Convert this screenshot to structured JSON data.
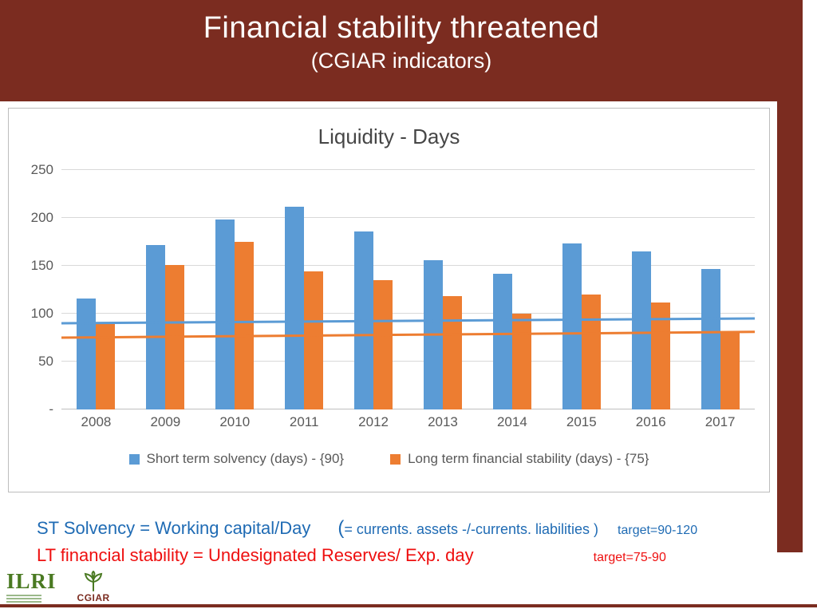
{
  "slide": {
    "title": "Financial stability threatened",
    "subtitle": "(CGIAR indicators)"
  },
  "colors": {
    "banner": "#7b2c20",
    "bar_blue": "#5b9bd5",
    "bar_orange": "#ed7d31",
    "note_blue": "#1f6bb4",
    "note_red": "#ee0f0f"
  },
  "chart_data": {
    "type": "bar",
    "title": "Liquidity - Days",
    "categories": [
      "2008",
      "2009",
      "2010",
      "2011",
      "2012",
      "2013",
      "2014",
      "2015",
      "2016",
      "2017"
    ],
    "series": [
      {
        "name": "Short term solvency (days) - {90}",
        "color": "#5b9bd5",
        "values": [
          116,
          172,
          198,
          212,
          186,
          156,
          142,
          173,
          165,
          147
        ]
      },
      {
        "name": "Long term financial stability (days) - {75}",
        "color": "#ed7d31",
        "values": [
          89,
          151,
          175,
          144,
          135,
          118,
          100,
          120,
          112,
          81
        ]
      }
    ],
    "target_lines": [
      {
        "name": "short-term-target-line",
        "color": "#5b9bd5",
        "start": 90,
        "end": 95
      },
      {
        "name": "long-term-target-line",
        "color": "#ed7d31",
        "start": 75,
        "end": 81
      }
    ],
    "ylim": [
      0,
      250
    ],
    "ytick_step": 50,
    "ytick_labels": [
      "-",
      "50",
      "100",
      "150",
      "200",
      "250"
    ],
    "grid": true,
    "legend_position": "bottom"
  },
  "notes": {
    "line1_main": "ST Solvency = Working capital/Day",
    "line1_paren": "(",
    "line1_detail": "= currents. assets -/-currents. liabilities )",
    "line1_target": "target=90-120",
    "line2_main": "LT financial stability = Undesignated Reserves/ Exp. day",
    "line2_target": "target=75-90"
  },
  "logos": {
    "ilri": "ILRI",
    "cgiar": "CGIAR"
  }
}
